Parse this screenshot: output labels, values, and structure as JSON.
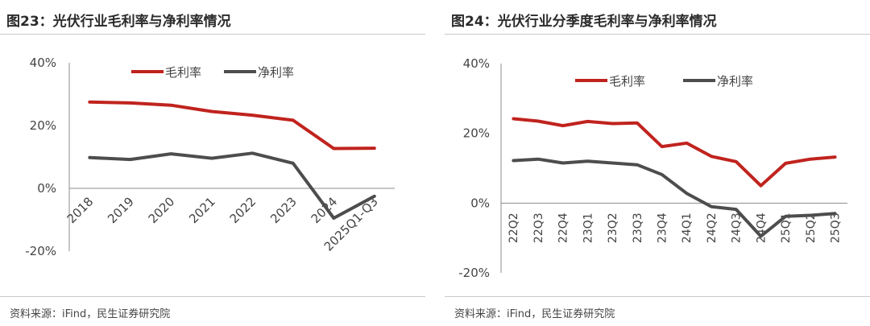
{
  "left": {
    "title": "图23：光伏行业毛利率与净利率情况",
    "source": "资料来源：iFind，民生证券研究院"
  },
  "right": {
    "title": "图24：光伏行业分季度毛利率与净利率情况",
    "source": "资料来源：iFind，民生证券研究院"
  },
  "chart_data": [
    {
      "type": "line",
      "categories": [
        "2018",
        "2019",
        "2020",
        "2021",
        "2022",
        "2023",
        "2024",
        "2025Q1-Q3"
      ],
      "series": [
        {
          "name": "毛利率",
          "color": "#c0231e",
          "values": [
            27.5,
            27.2,
            26.5,
            24.5,
            23.3,
            21.7,
            12.7,
            12.8
          ]
        },
        {
          "name": "净利率",
          "color": "#4d4d4d",
          "values": [
            9.8,
            9.2,
            11.0,
            9.6,
            11.2,
            8.0,
            -9.5,
            -2.5
          ]
        }
      ],
      "yticks": [
        "40%",
        "20%",
        "0%",
        "-20%"
      ],
      "ylim": [
        -20,
        40
      ],
      "legend": "top"
    },
    {
      "type": "line",
      "categories": [
        "22Q2",
        "22Q3",
        "22Q4",
        "23Q1",
        "23Q2",
        "23Q3",
        "23Q4",
        "24Q1",
        "24Q2",
        "24Q3",
        "24Q4",
        "25Q1",
        "25Q2",
        "25Q3"
      ],
      "series": [
        {
          "name": "毛利率",
          "color": "#c0231e",
          "values": [
            24.2,
            23.5,
            22.2,
            23.4,
            22.8,
            23.0,
            16.2,
            17.2,
            13.4,
            11.9,
            5.0,
            11.4,
            12.6,
            13.2
          ]
        },
        {
          "name": "净利率",
          "color": "#4d4d4d",
          "values": [
            12.2,
            12.6,
            11.5,
            12.0,
            11.5,
            11.0,
            8.2,
            2.8,
            -1.0,
            -1.8,
            -9.5,
            -3.8,
            -3.5,
            -3.0
          ]
        }
      ],
      "yticks": [
        "40%",
        "20%",
        "0%",
        "-20%"
      ],
      "ylim": [
        -20,
        40
      ],
      "legend": "top"
    }
  ]
}
